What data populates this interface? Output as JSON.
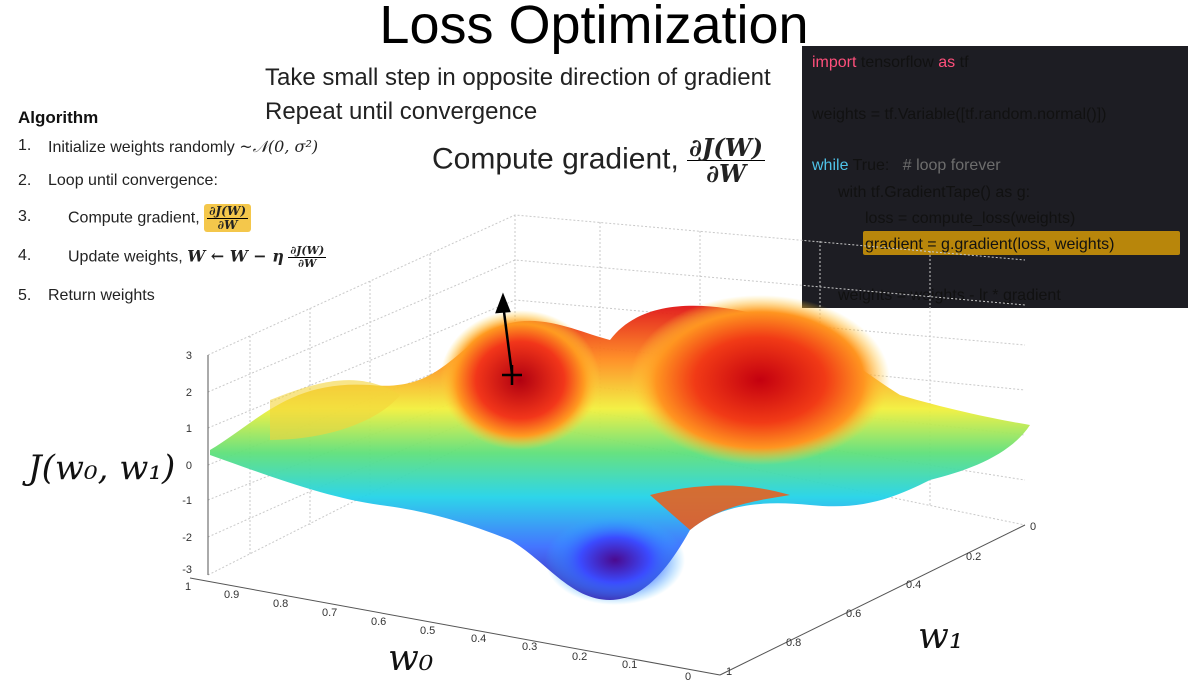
{
  "slide": {
    "title": "Loss Optimization",
    "subtitle_lines": [
      "Take small step in opposite direction of gradient",
      "Repeat until convergence"
    ],
    "gradient_heading": "Compute gradient,",
    "gradient_fraction": {
      "numerator": "∂J(W)",
      "denominator": "∂W"
    }
  },
  "algorithm": {
    "heading": "Algorithm",
    "steps": [
      {
        "num": "1.",
        "text": "Initialize weights randomly",
        "math": "~𝒩(0, σ²)"
      },
      {
        "num": "2.",
        "text": "Loop until convergence:"
      },
      {
        "num": "3.",
        "text": "Compute gradient,",
        "frac_num": "∂J(W)",
        "frac_den": "∂W"
      },
      {
        "num": "4.",
        "text": "Update weights,",
        "math": "W ← W − η",
        "frac_num": "∂J(W)",
        "frac_den": "∂W"
      },
      {
        "num": "5.",
        "text": "Return weights"
      }
    ]
  },
  "code": {
    "lines": [
      "import tensorflow as tf",
      "weights = tf.Variable([tf.random.normal()])",
      "while True:   # loop forever",
      "with tf.GradientTape() as g:",
      "loss = compute_loss(weights)",
      "gradient = g.gradient(loss, weights)",
      "weights = weights - lr * gradient"
    ],
    "highlight_color": "#b8860b"
  },
  "plot": {
    "zlabel": "J(w₀, w₁)",
    "xlabel": "w₀",
    "ylabel": "w₁",
    "z_ticks": [
      "3",
      "2",
      "1",
      "0",
      "-1",
      "-2",
      "-3"
    ],
    "w0_ticks": [
      "1",
      "0.9",
      "0.8",
      "0.7",
      "0.6",
      "0.5",
      "0.4",
      "0.3",
      "0.2",
      "0.1",
      "0"
    ],
    "w1_ticks": [
      "0",
      "0.2",
      "0.4",
      "0.6",
      "0.8",
      "1"
    ]
  },
  "colors": {
    "accent": "#f4c74b",
    "code_bg": "#1d1d23"
  }
}
